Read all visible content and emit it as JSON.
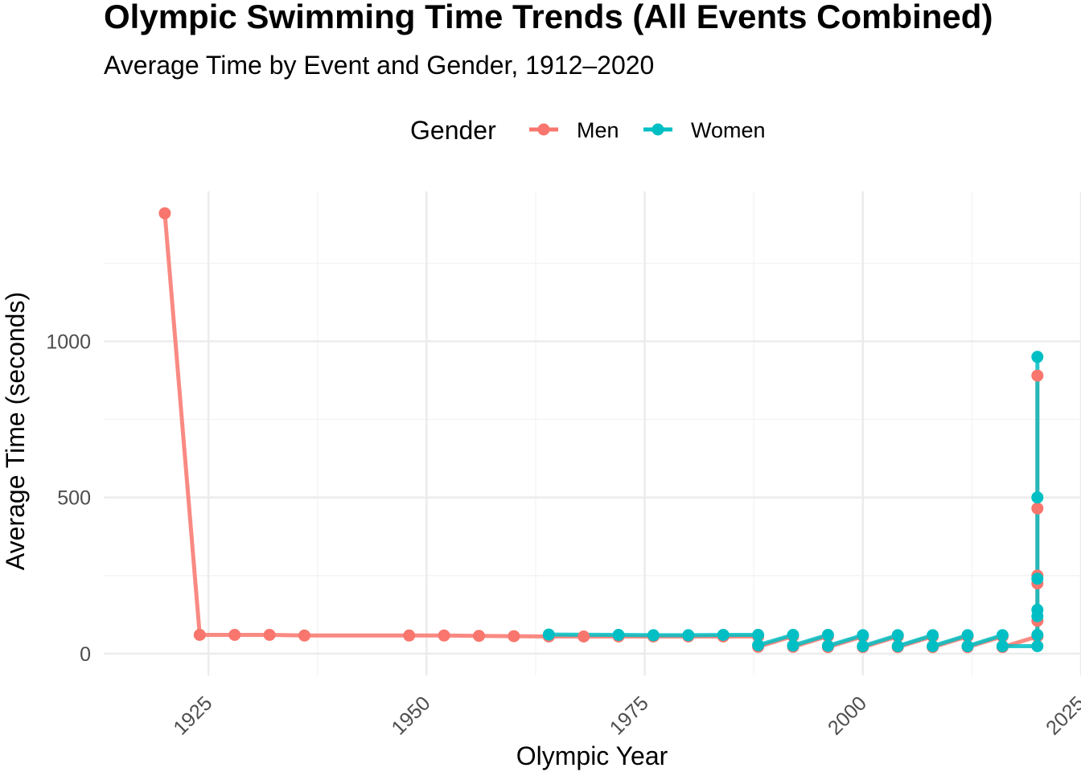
{
  "chart_data": {
    "type": "line",
    "title": "Olympic Swimming Time Trends (All Events Combined)",
    "subtitle": "Average Time by Event and Gender, 1912–2020",
    "xlabel": "Olympic Year",
    "ylabel": "Average Time (seconds)",
    "xlim": [
      1913,
      2025
    ],
    "ylim": [
      -70,
      1480
    ],
    "x_ticks": [
      1925,
      1950,
      1975,
      2000,
      2025
    ],
    "y_ticks": [
      0,
      500,
      1000
    ],
    "grid": true,
    "legend": {
      "title": "Gender",
      "position": "top",
      "entries": [
        "Men",
        "Women"
      ]
    },
    "series": [
      {
        "name": "Men",
        "color": "#F8766D",
        "points": [
          [
            1920,
            1410
          ],
          [
            1924,
            60
          ],
          [
            1928,
            60
          ],
          [
            1932,
            60
          ],
          [
            1936,
            58
          ],
          [
            1948,
            58
          ],
          [
            1952,
            58
          ],
          [
            1956,
            57
          ],
          [
            1960,
            56
          ],
          [
            1964,
            55
          ],
          [
            1968,
            55
          ],
          [
            1972,
            55
          ],
          [
            1976,
            55
          ],
          [
            1980,
            55
          ],
          [
            1984,
            55
          ],
          [
            1988,
            55
          ],
          [
            1988,
            22
          ],
          [
            1992,
            56
          ],
          [
            1992,
            22
          ],
          [
            1996,
            56
          ],
          [
            1996,
            21
          ],
          [
            2000,
            55
          ],
          [
            2000,
            21
          ],
          [
            2004,
            55
          ],
          [
            2004,
            21
          ],
          [
            2008,
            55
          ],
          [
            2008,
            21
          ],
          [
            2012,
            55
          ],
          [
            2012,
            21
          ],
          [
            2016,
            55
          ],
          [
            2016,
            21
          ],
          [
            2020,
            55
          ],
          [
            2020,
            105
          ],
          [
            2020,
            225
          ],
          [
            2020,
            250
          ],
          [
            2020,
            465
          ],
          [
            2020,
            890
          ]
        ]
      },
      {
        "name": "Women",
        "color": "#00BFC4",
        "points": [
          [
            1964,
            61
          ],
          [
            1972,
            60
          ],
          [
            1976,
            59
          ],
          [
            1980,
            59
          ],
          [
            1984,
            60
          ],
          [
            1988,
            60
          ],
          [
            1988,
            27
          ],
          [
            1992,
            60
          ],
          [
            1992,
            26
          ],
          [
            1996,
            60
          ],
          [
            1996,
            25
          ],
          [
            2000,
            59
          ],
          [
            2000,
            24
          ],
          [
            2004,
            59
          ],
          [
            2004,
            24
          ],
          [
            2008,
            59
          ],
          [
            2008,
            24
          ],
          [
            2012,
            59
          ],
          [
            2012,
            24
          ],
          [
            2016,
            59
          ],
          [
            2016,
            24
          ],
          [
            2020,
            24
          ],
          [
            2020,
            60
          ],
          [
            2020,
            120
          ],
          [
            2020,
            140
          ],
          [
            2020,
            240
          ],
          [
            2020,
            500
          ],
          [
            2020,
            950
          ]
        ]
      }
    ]
  }
}
